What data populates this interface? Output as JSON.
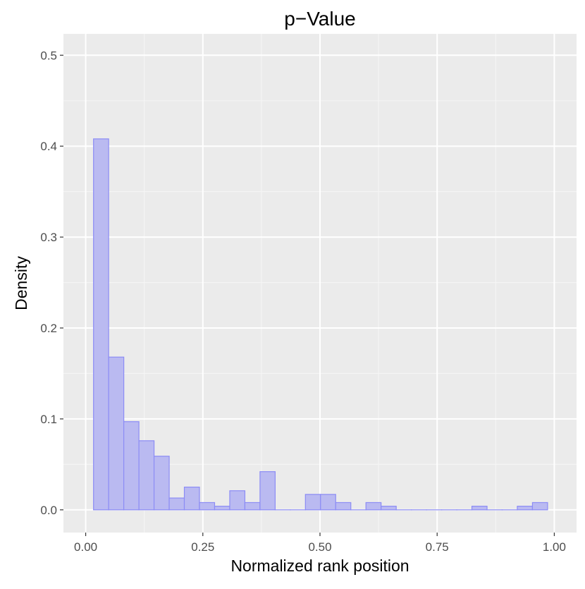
{
  "chart_data": {
    "type": "bar",
    "title": "p−Value",
    "xlabel": "Normalized rank position",
    "ylabel": "Density",
    "xlim": [
      -0.0475,
      1.0475
    ],
    "ylim": [
      -0.025,
      0.5235
    ],
    "xticks": [
      0.0,
      0.25,
      0.5,
      0.75,
      1.0
    ],
    "xtick_labels": [
      "0.00",
      "0.25",
      "0.50",
      "0.75",
      "1.00"
    ],
    "yticks": [
      0.0,
      0.1,
      0.2,
      0.3,
      0.4,
      0.5
    ],
    "ytick_labels": [
      "0.0",
      "0.1",
      "0.2",
      "0.3",
      "0.4",
      "0.5"
    ],
    "bin_start": 0.0167,
    "bin_width": 0.0323,
    "values": [
      0.408,
      0.168,
      0.097,
      0.076,
      0.059,
      0.013,
      0.025,
      0.008,
      0.004,
      0.021,
      0.008,
      0.042,
      0.0,
      0.0,
      0.017,
      0.017,
      0.008,
      0.0,
      0.008,
      0.004,
      0.0,
      0.0,
      0.0,
      0.0,
      0.0,
      0.004,
      0.0,
      0.0,
      0.004,
      0.008
    ],
    "grid": true,
    "colors": {
      "panel": "#ebebeb",
      "grid_major": "#ffffff",
      "grid_minor": "#f5f5f5",
      "bar_fill": "#babaf1",
      "bar_stroke": "#8c8cf5"
    }
  }
}
